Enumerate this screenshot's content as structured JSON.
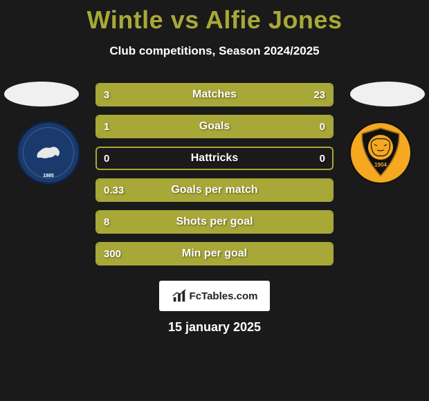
{
  "title": "Wintle vs Alfie Jones",
  "subtitle": "Club competitions, Season 2024/2025",
  "left_player": {
    "crest_year": "1885",
    "crest_primary": "#1a3a6e",
    "crest_secondary": "#e8e8e8"
  },
  "right_player": {
    "crest_year": "1904",
    "crest_primary": "#f5a820",
    "crest_secondary": "#111111"
  },
  "accent_color": "#a8a838",
  "background_color": "#1a1a1a",
  "text_color": "#ffffff",
  "rows": [
    {
      "label": "Matches",
      "left": "3",
      "right": "23",
      "left_fill_pct": 15,
      "right_fill_pct": 85
    },
    {
      "label": "Goals",
      "left": "1",
      "right": "0",
      "left_fill_pct": 78,
      "right_fill_pct": 22
    },
    {
      "label": "Hattricks",
      "left": "0",
      "right": "0",
      "left_fill_pct": 0,
      "right_fill_pct": 0
    },
    {
      "label": "Goals per match",
      "left": "0.33",
      "right": "",
      "left_fill_pct": 100,
      "right_fill_pct": 0
    },
    {
      "label": "Shots per goal",
      "left": "8",
      "right": "",
      "left_fill_pct": 100,
      "right_fill_pct": 0
    },
    {
      "label": "Min per goal",
      "left": "300",
      "right": "",
      "left_fill_pct": 100,
      "right_fill_pct": 0
    }
  ],
  "logo_text": "FcTables.com",
  "date": "15 january 2025"
}
